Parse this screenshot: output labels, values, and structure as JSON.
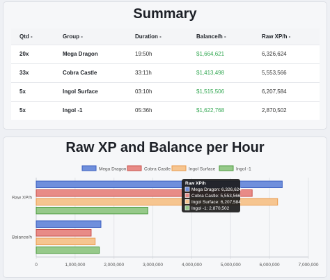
{
  "summary": {
    "title": "Summary",
    "headers": [
      "Qtd -",
      "Group -",
      "Duration -",
      "Balance/h -",
      "Raw XP/h -"
    ],
    "rows": [
      {
        "qtd": "20x",
        "group": "Mega Dragon",
        "duration": "19:50h",
        "balance": "$1,664,621",
        "xp": "6,326,624"
      },
      {
        "qtd": "33x",
        "group": "Cobra Castle",
        "duration": "33:11h",
        "balance": "$1,413,498",
        "xp": "5,553,566"
      },
      {
        "qtd": "5x",
        "group": "Ingol Surface",
        "duration": "03:10h",
        "balance": "$1,515,506",
        "xp": "6,207,584"
      },
      {
        "qtd": "5x",
        "group": "Ingol -1",
        "duration": "05:36h",
        "balance": "$1,622,768",
        "xp": "2,870,502"
      }
    ]
  },
  "chart": {
    "title": "Raw XP and Balance per Hour",
    "tooltip": {
      "title": "Raw XP/h",
      "lines": [
        "Mega Dragon: 6,326,624",
        "Cobra Castle: 5,553,566",
        "Ingol Surface: 6,207,584",
        "Ingol -1: 2,870,502"
      ]
    }
  },
  "chart_data": {
    "type": "bar",
    "orientation": "horizontal",
    "title": "Raw XP and Balance per Hour",
    "categories": [
      "Raw XP/h",
      "Balance/h"
    ],
    "series": [
      {
        "name": "Mega Dragon",
        "values": [
          6326624,
          1664621
        ],
        "fill": "#6f8fdc",
        "stroke": "#3b5fc0"
      },
      {
        "name": "Cobra Castle",
        "values": [
          5553566,
          1413498
        ],
        "fill": "#e88b87",
        "stroke": "#c9504b"
      },
      {
        "name": "Ingol Surface",
        "values": [
          6207584,
          1515506
        ],
        "fill": "#f6c590",
        "stroke": "#e89a4c"
      },
      {
        "name": "Ingol -1",
        "values": [
          2870502,
          1622768
        ],
        "fill": "#96c98a",
        "stroke": "#4c9a3f"
      }
    ],
    "xlim": [
      0,
      7000000
    ],
    "xticks": [
      "0",
      "1,000,000",
      "2,000,000",
      "3,000,000",
      "4,000,000",
      "5,000,000",
      "6,000,000",
      "7,000,000"
    ],
    "legend": "top",
    "grid": true
  }
}
